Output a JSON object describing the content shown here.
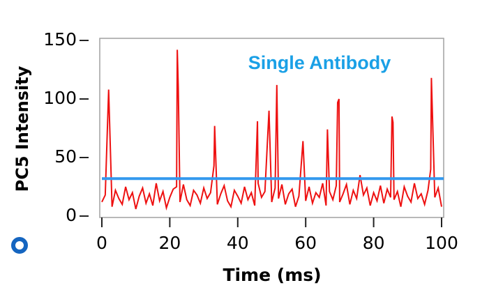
{
  "chart_data": {
    "type": "line",
    "annotation": "Single Antibody",
    "xlabel": "Time (ms)",
    "ylabel": "PC5 Intensity",
    "x": [
      0,
      1,
      2,
      3,
      4,
      5,
      6,
      7,
      8,
      9,
      10,
      11,
      12,
      13,
      14,
      15,
      16,
      17,
      18,
      19,
      20,
      21,
      22,
      22.2,
      22.5,
      23,
      24,
      25,
      26,
      27,
      28,
      29,
      30,
      31,
      32,
      33,
      33.2,
      34,
      35,
      36,
      37,
      38,
      39,
      40,
      41,
      42,
      43,
      44,
      45,
      45.8,
      46,
      47,
      48,
      49.2,
      50,
      51,
      51.5,
      52,
      53,
      54,
      55,
      56,
      57,
      58,
      59.2,
      60,
      61,
      62,
      63,
      64,
      65,
      66,
      66.4,
      67,
      68,
      69,
      69.4,
      69.8,
      70,
      71,
      72,
      73,
      74,
      75,
      76,
      77,
      78,
      79,
      80,
      81,
      82,
      83,
      84,
      85,
      85.4,
      85.7,
      86,
      87,
      88,
      89,
      90,
      91,
      92,
      93,
      94,
      95,
      96,
      96.8,
      97,
      98,
      99,
      100
    ],
    "values": [
      12,
      18,
      108,
      8,
      22,
      15,
      10,
      25,
      14,
      20,
      6,
      17,
      24,
      11,
      19,
      9,
      28,
      13,
      21,
      7,
      16,
      23,
      25,
      142,
      110,
      12,
      27,
      14,
      9,
      22,
      18,
      11,
      24,
      15,
      20,
      43,
      77,
      10,
      19,
      26,
      13,
      8,
      22,
      17,
      11,
      25,
      14,
      20,
      9,
      81,
      28,
      16,
      21,
      90,
      12,
      24,
      112,
      15,
      27,
      10,
      19,
      23,
      8,
      17,
      64,
      13,
      25,
      11,
      20,
      16,
      28,
      9,
      74,
      21,
      14,
      26,
      97,
      100,
      12,
      19,
      27,
      10,
      22,
      15,
      35,
      18,
      24,
      9,
      20,
      13,
      26,
      11,
      23,
      16,
      85,
      80,
      14,
      21,
      8,
      25,
      17,
      12,
      28,
      15,
      19,
      10,
      22,
      40,
      118,
      16,
      24,
      8
    ],
    "color": "#ee1111",
    "threshold": {
      "value": 32,
      "color": "#3399ee"
    },
    "xlim": [
      0,
      100
    ],
    "xticks": [
      0,
      20,
      40,
      60,
      80,
      100
    ],
    "ylim": [
      0,
      150
    ],
    "yticks": [
      0,
      50,
      100,
      150
    ]
  }
}
